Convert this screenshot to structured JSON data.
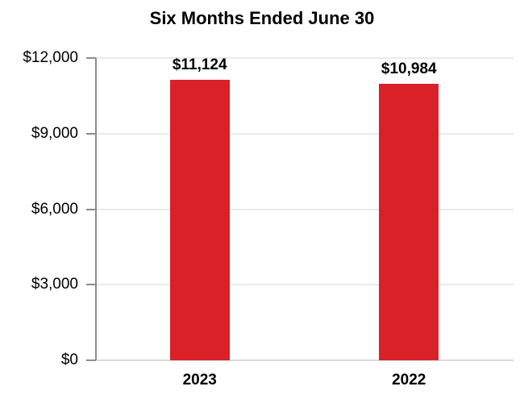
{
  "chart_data": {
    "type": "bar",
    "title": "Six Months Ended June 30",
    "categories": [
      "2023",
      "2022"
    ],
    "values": [
      11124,
      10984
    ],
    "value_labels": [
      "$11,124",
      "$10,984"
    ],
    "y_ticks": [
      {
        "value": 12000,
        "label": "$12,000"
      },
      {
        "value": 9000,
        "label": "$9,000"
      },
      {
        "value": 6000,
        "label": "$6,000"
      },
      {
        "value": 3000,
        "label": "$3,000"
      },
      {
        "value": 0,
        "label": "$0"
      }
    ],
    "ylim": [
      0,
      12000
    ],
    "xlabel": "",
    "ylabel": "",
    "grid": true,
    "legend_position": "none",
    "colors": {
      "bar": "#DA2128",
      "axis": "#8C8C8C",
      "gridline": "#EAEAEA",
      "x_axis_line": "#D9D9D9",
      "text": "#000000",
      "background": "#FFFFFF"
    }
  }
}
